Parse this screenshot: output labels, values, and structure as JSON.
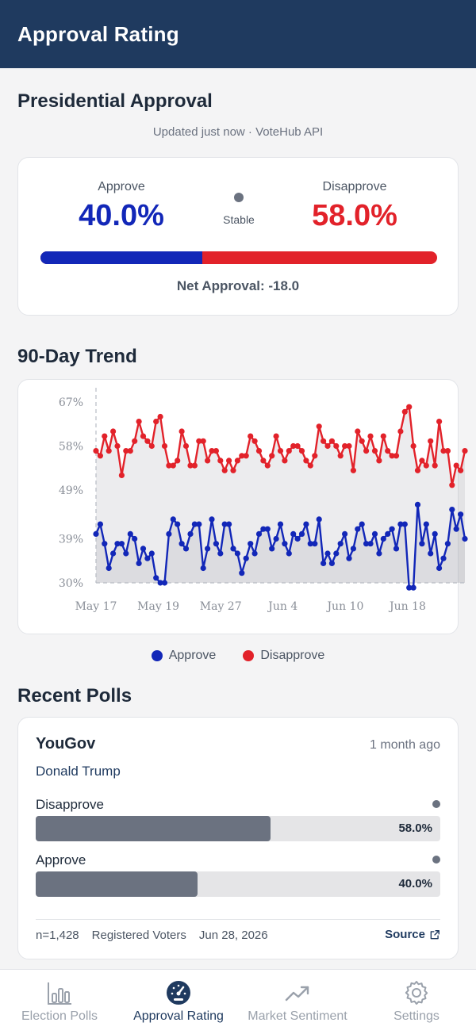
{
  "header": {
    "title": "Approval Rating"
  },
  "page": {
    "title": "Presidential Approval",
    "subtitle": "Updated just now · VoteHub API"
  },
  "summary": {
    "approve_label": "Approve",
    "approve_value": "40.0%",
    "disapprove_label": "Disapprove",
    "disapprove_value": "58.0%",
    "trend": "Stable",
    "net": "Net Approval: -18.0",
    "approve_share": 0.408,
    "colors": {
      "approve": "#1227b8",
      "disapprove": "#e2222a"
    }
  },
  "trend_section": {
    "title": "90-Day Trend"
  },
  "chart_data": {
    "type": "line",
    "title": "",
    "xlabel": "",
    "ylabel": "",
    "ylim": [
      30,
      67
    ],
    "yticks": [
      "30%",
      "39%",
      "49%",
      "58%",
      "67%"
    ],
    "ytick_values": [
      30,
      39,
      49,
      58,
      67
    ],
    "xticks": [
      "May 17",
      "May 19",
      "May 27",
      "Jun 4",
      "Jun 10",
      "Jun 18"
    ],
    "series": [
      {
        "name": "Approve",
        "color": "#1227b8",
        "values": [
          40,
          42,
          38,
          33,
          36,
          38,
          38,
          36,
          40,
          39,
          34,
          37,
          35,
          36,
          31,
          30,
          30,
          40,
          43,
          42,
          38,
          37,
          40,
          42,
          42,
          33,
          37,
          43,
          38,
          36,
          42,
          42,
          37,
          36,
          32,
          35,
          38,
          36,
          40,
          41,
          41,
          37,
          39,
          42,
          38,
          36,
          40,
          39,
          40,
          42,
          38,
          38,
          43,
          34,
          36,
          34,
          36,
          38,
          40,
          35,
          37,
          41,
          42,
          38,
          38,
          40,
          36,
          39,
          40,
          41,
          37,
          42,
          42,
          29,
          29,
          46,
          38,
          42,
          36,
          40,
          33,
          35,
          38,
          45,
          41,
          44,
          39
        ]
      },
      {
        "name": "Disapprove",
        "color": "#e2222a",
        "values": [
          57,
          56,
          60,
          57,
          61,
          58,
          52,
          57,
          57,
          59,
          63,
          60,
          59,
          58,
          63,
          64,
          58,
          54,
          54,
          55,
          61,
          58,
          54,
          54,
          59,
          59,
          55,
          57,
          57,
          55,
          53,
          55,
          53,
          55,
          56,
          56,
          60,
          59,
          57,
          55,
          54,
          56,
          60,
          57,
          55,
          57,
          58,
          58,
          57,
          55,
          54,
          56,
          62,
          59,
          58,
          59,
          58,
          56,
          58,
          58,
          53,
          61,
          59,
          57,
          60,
          57,
          55,
          60,
          57,
          56,
          56,
          61,
          65,
          66,
          58,
          53,
          55,
          54,
          59,
          54,
          63,
          57,
          57,
          50,
          54,
          53,
          57
        ]
      }
    ]
  },
  "legend": {
    "approve": "Approve",
    "disapprove": "Disapprove"
  },
  "recent": {
    "title": "Recent Polls",
    "poll": {
      "pollster": "YouGov",
      "time": "1 month ago",
      "candidate": "Donald Trump",
      "results": [
        {
          "label": "Disapprove",
          "value": "58.0%",
          "share": 0.58
        },
        {
          "label": "Approve",
          "value": "40.0%",
          "share": 0.4
        }
      ],
      "sample": "n=1,428",
      "population": "Registered Voters",
      "date": "Jun 28, 2026",
      "source": "Source"
    }
  },
  "nav": {
    "items": [
      {
        "label": "Election Polls",
        "icon": "bar-chart-icon"
      },
      {
        "label": "Approval Rating",
        "icon": "gauge-icon"
      },
      {
        "label": "Market Sentiment",
        "icon": "trending-up-icon"
      },
      {
        "label": "Settings",
        "icon": "gear-icon"
      }
    ]
  }
}
